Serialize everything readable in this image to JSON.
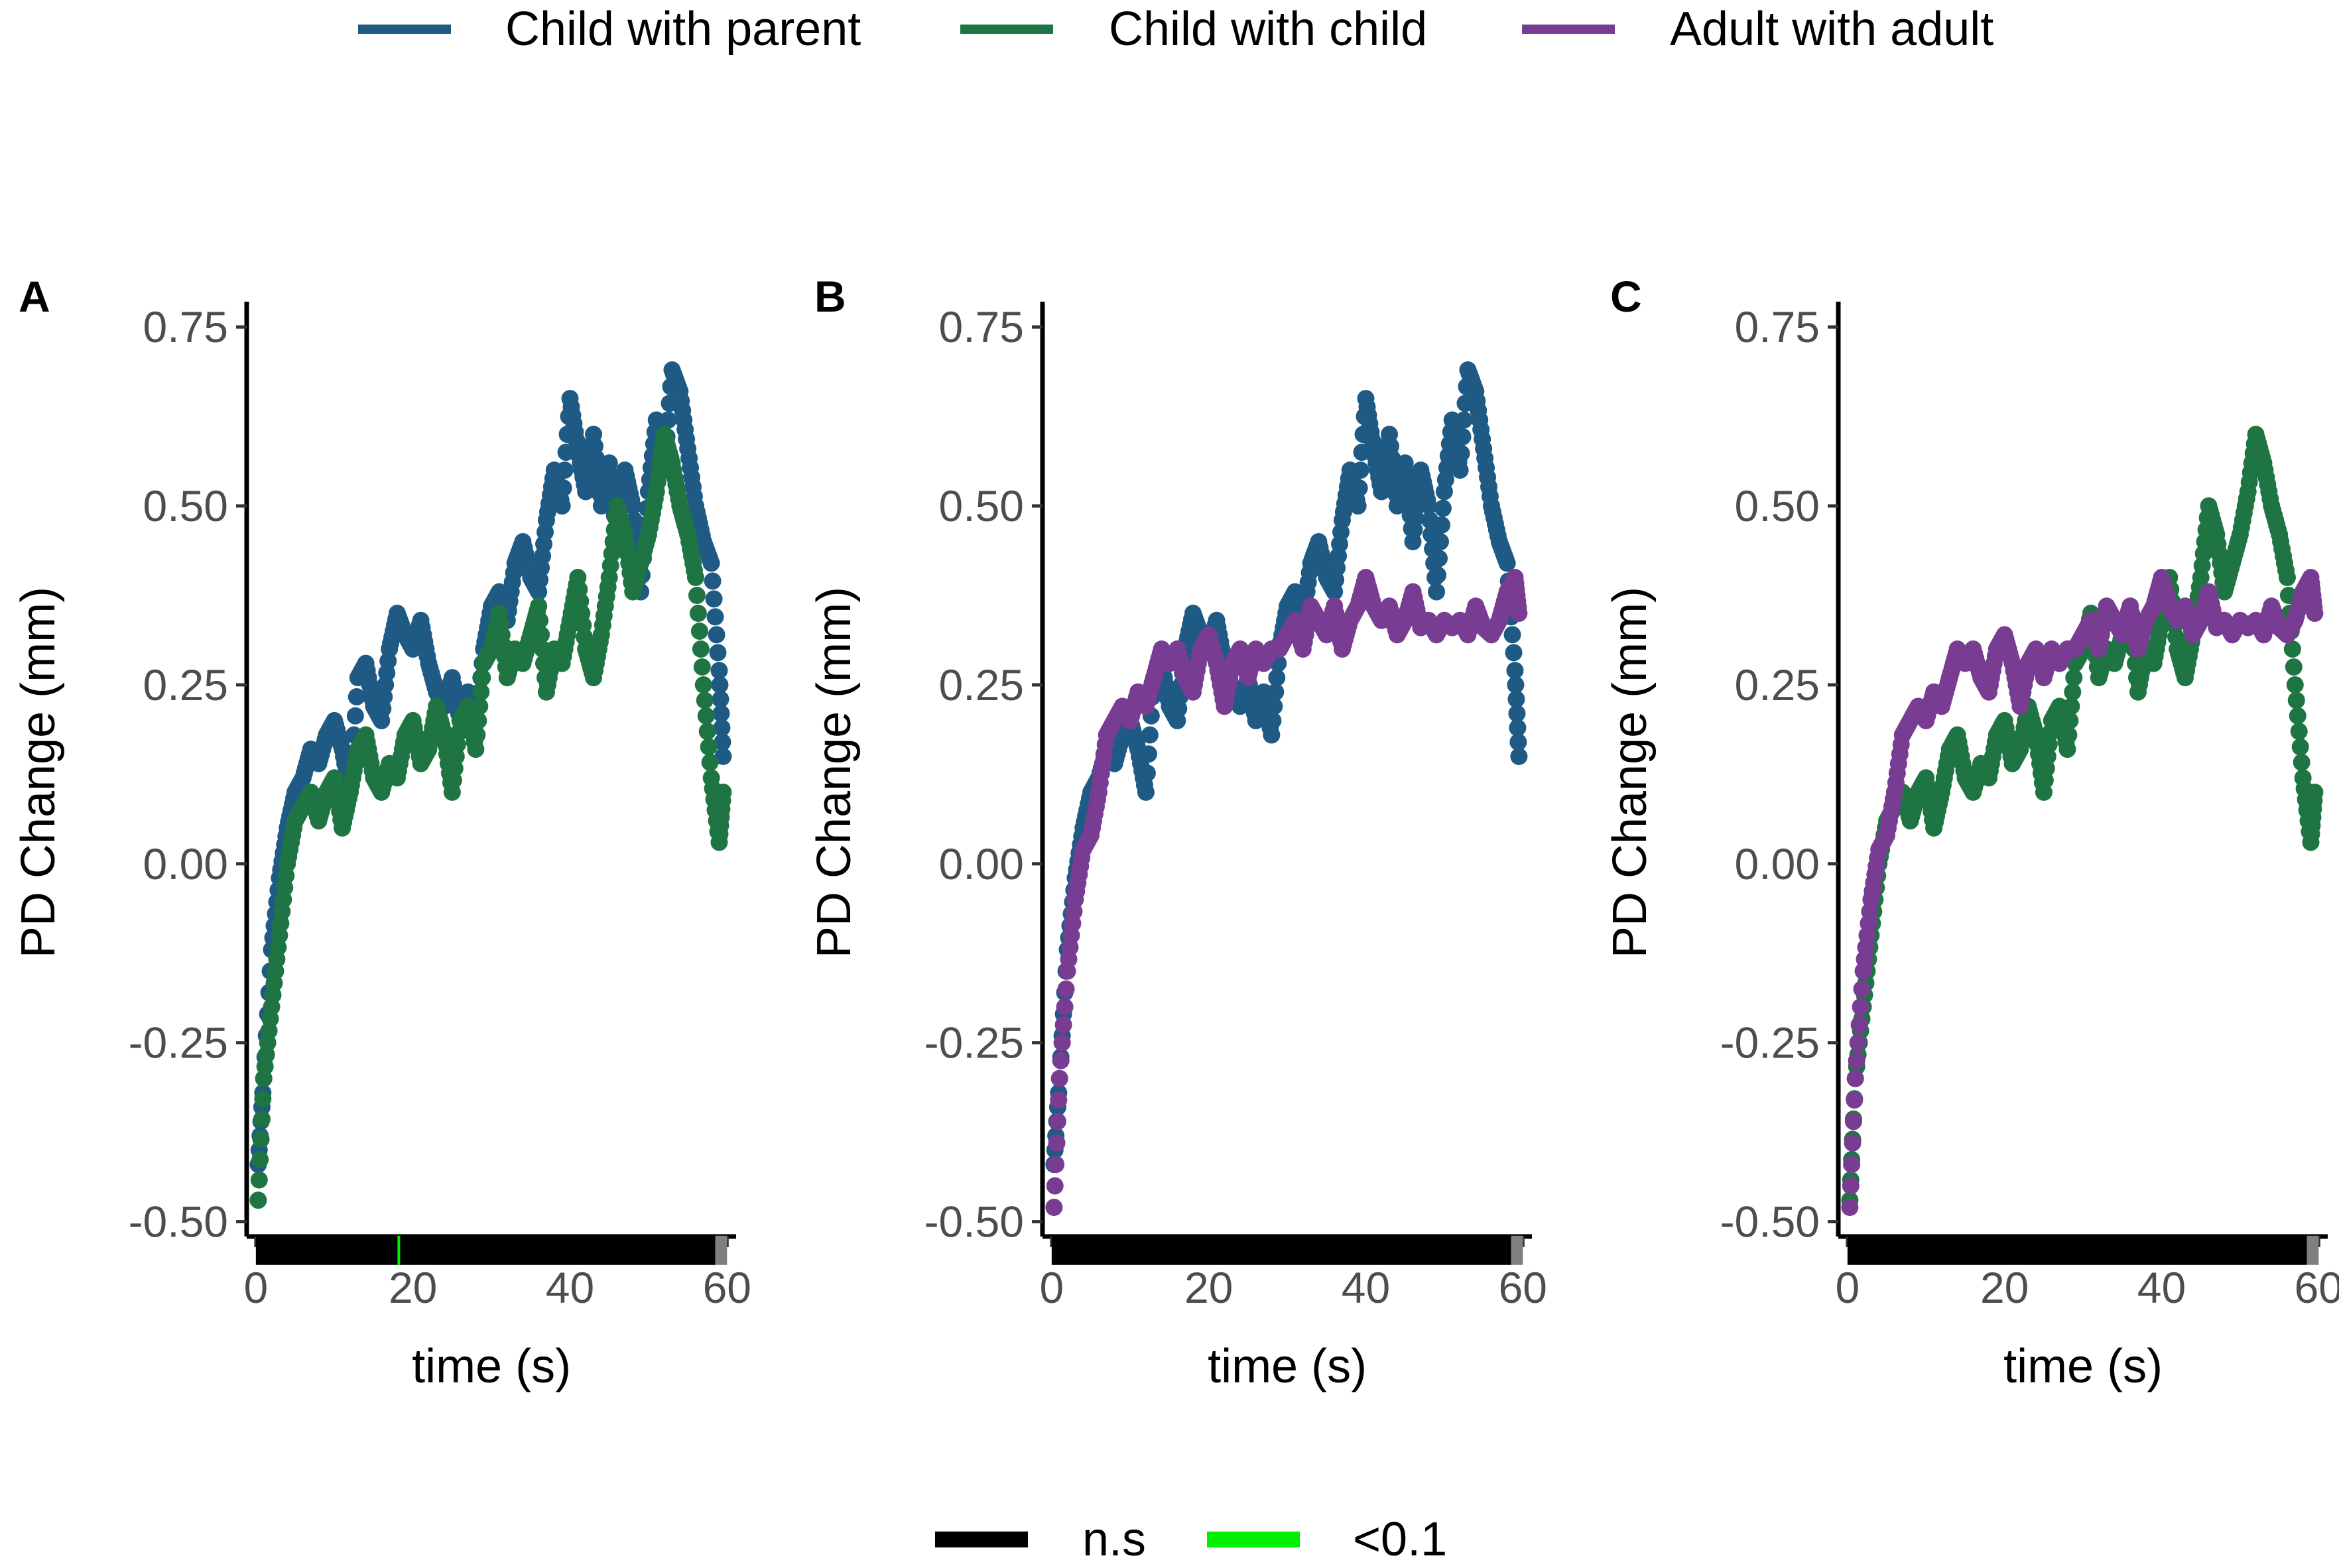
{
  "legend_top": [
    {
      "label": "Child with parent",
      "color": "#1f5a84"
    },
    {
      "label": "Child with child",
      "color": "#1e7543"
    },
    {
      "label": "Adult with adult",
      "color": "#783c92"
    }
  ],
  "legend_bottom": [
    {
      "label": "n.s",
      "color": "#000000"
    },
    {
      "label": "<0.1",
      "color": "#00ee00"
    }
  ],
  "chart_data": [
    {
      "type": "scatter",
      "panel": "A",
      "xlabel": "time (s)",
      "ylabel": "PD Change (mm)",
      "xlim": [
        -1,
        62
      ],
      "ylim": [
        -0.53,
        0.79
      ],
      "xticks": [
        "0",
        "20",
        "40",
        "60"
      ],
      "yticks": [
        "0.75",
        "0.50",
        "0.25",
        "0.00",
        "-0.25",
        "-0.50"
      ],
      "series_names": [
        "Child with parent",
        "Child with child"
      ],
      "significance_bar": {
        "y": -0.54,
        "from": 0,
        "to": 60,
        "ns_color": "#000000",
        "end_color": "#7f7f7f",
        "end_start": 58.5,
        "marks_lt01": [
          18.2
        ]
      }
    },
    {
      "type": "scatter",
      "panel": "B",
      "xlabel": "time (s)",
      "ylabel": "PD Change (mm)",
      "xlim": [
        -1,
        62
      ],
      "ylim": [
        -0.53,
        0.79
      ],
      "xticks": [
        "0",
        "20",
        "40",
        "60"
      ],
      "yticks": [
        "0.75",
        "0.50",
        "0.25",
        "0.00",
        "-0.25",
        "-0.50"
      ],
      "series_names": [
        "Child with parent",
        "Adult with adult"
      ],
      "significance_bar": {
        "y": -0.54,
        "from": 0,
        "to": 60,
        "ns_color": "#000000",
        "end_color": "#7f7f7f",
        "end_start": 58.5,
        "marks_lt01": []
      }
    },
    {
      "type": "scatter",
      "panel": "C",
      "xlabel": "time (s)",
      "ylabel": "PD Change (mm)",
      "xlim": [
        -1,
        62
      ],
      "ylim": [
        -0.53,
        0.79
      ],
      "xticks": [
        "0",
        "20",
        "40",
        "60"
      ],
      "yticks": [
        "0.75",
        "0.50",
        "0.25",
        "0.00",
        "-0.25",
        "-0.50"
      ],
      "series_names": [
        "Child with child",
        "Adult with adult"
      ],
      "significance_bar": {
        "y": -0.54,
        "from": 0,
        "to": 60,
        "ns_color": "#000000",
        "end_color": "#7f7f7f",
        "end_start": 58.5,
        "marks_lt01": []
      }
    }
  ],
  "series": {
    "Child with parent": {
      "color": "#1f5a84",
      "x": [
        0.3,
        1,
        2,
        3,
        4,
        5,
        6,
        7,
        8,
        9,
        10,
        11,
        12,
        13,
        14,
        15,
        16,
        17,
        18,
        19,
        20,
        21,
        22,
        23,
        24,
        25,
        26,
        27,
        28,
        29,
        30,
        31,
        32,
        33,
        34,
        35,
        36,
        37,
        38,
        39,
        40,
        41,
        42,
        43,
        44,
        45,
        46,
        47,
        48,
        49,
        50,
        51,
        52,
        53,
        54,
        55,
        56,
        57,
        58,
        59,
        59.5
      ],
      "y": [
        -0.42,
        -0.3,
        -0.12,
        -0.02,
        0.05,
        0.1,
        0.12,
        0.16,
        0.14,
        0.18,
        0.2,
        0.16,
        0.1,
        0.26,
        0.28,
        0.22,
        0.2,
        0.3,
        0.35,
        0.32,
        0.3,
        0.34,
        0.28,
        0.24,
        0.22,
        0.26,
        0.2,
        0.24,
        0.18,
        0.3,
        0.36,
        0.38,
        0.34,
        0.42,
        0.45,
        0.4,
        0.38,
        0.48,
        0.55,
        0.5,
        0.65,
        0.58,
        0.52,
        0.6,
        0.5,
        0.56,
        0.45,
        0.55,
        0.5,
        0.38,
        0.52,
        0.62,
        0.55,
        0.69,
        0.66,
        0.58,
        0.5,
        0.45,
        0.42,
        0.27,
        0.15
      ]
    },
    "Child with child": {
      "color": "#1e7543",
      "x": [
        0.3,
        1,
        2,
        3,
        4,
        5,
        6,
        7,
        8,
        9,
        10,
        11,
        12,
        13,
        14,
        15,
        16,
        17,
        18,
        19,
        20,
        21,
        22,
        23,
        24,
        25,
        26,
        27,
        28,
        29,
        30,
        31,
        32,
        33,
        34,
        35,
        36,
        37,
        38,
        39,
        40,
        41,
        42,
        43,
        44,
        45,
        46,
        47,
        48,
        49,
        50,
        51,
        52,
        53,
        54,
        55,
        56,
        57,
        58,
        59,
        59.5
      ],
      "y": [
        -0.47,
        -0.3,
        -0.2,
        -0.1,
        0.0,
        0.06,
        0.08,
        0.1,
        0.06,
        0.1,
        0.12,
        0.05,
        0.1,
        0.16,
        0.18,
        0.12,
        0.1,
        0.14,
        0.12,
        0.18,
        0.2,
        0.14,
        0.16,
        0.22,
        0.18,
        0.1,
        0.2,
        0.22,
        0.16,
        0.28,
        0.3,
        0.35,
        0.26,
        0.3,
        0.28,
        0.32,
        0.36,
        0.24,
        0.3,
        0.28,
        0.34,
        0.4,
        0.3,
        0.26,
        0.32,
        0.4,
        0.5,
        0.46,
        0.38,
        0.42,
        0.46,
        0.52,
        0.6,
        0.56,
        0.5,
        0.46,
        0.4,
        0.25,
        0.12,
        0.03,
        0.1
      ]
    },
    "Adult with adult": {
      "color": "#783c92",
      "x": [
        0.3,
        1,
        2,
        3,
        4,
        5,
        6,
        7,
        8,
        9,
        10,
        11,
        12,
        13,
        14,
        15,
        16,
        17,
        18,
        19,
        20,
        21,
        22,
        23,
        24,
        25,
        26,
        27,
        28,
        29,
        30,
        31,
        32,
        33,
        34,
        35,
        36,
        37,
        38,
        39,
        40,
        41,
        42,
        43,
        44,
        45,
        46,
        47,
        48,
        49,
        50,
        51,
        52,
        53,
        54,
        55,
        56,
        57,
        58,
        59,
        59.5
      ],
      "y": [
        -0.48,
        -0.3,
        -0.15,
        -0.05,
        0.02,
        0.04,
        0.1,
        0.18,
        0.2,
        0.22,
        0.2,
        0.24,
        0.22,
        0.26,
        0.3,
        0.28,
        0.3,
        0.26,
        0.24,
        0.3,
        0.32,
        0.28,
        0.22,
        0.28,
        0.3,
        0.26,
        0.3,
        0.28,
        0.3,
        0.3,
        0.32,
        0.34,
        0.3,
        0.36,
        0.34,
        0.32,
        0.36,
        0.3,
        0.34,
        0.36,
        0.4,
        0.36,
        0.34,
        0.36,
        0.32,
        0.34,
        0.38,
        0.33,
        0.34,
        0.32,
        0.34,
        0.33,
        0.34,
        0.32,
        0.36,
        0.33,
        0.32,
        0.34,
        0.38,
        0.4,
        0.35
      ]
    }
  }
}
